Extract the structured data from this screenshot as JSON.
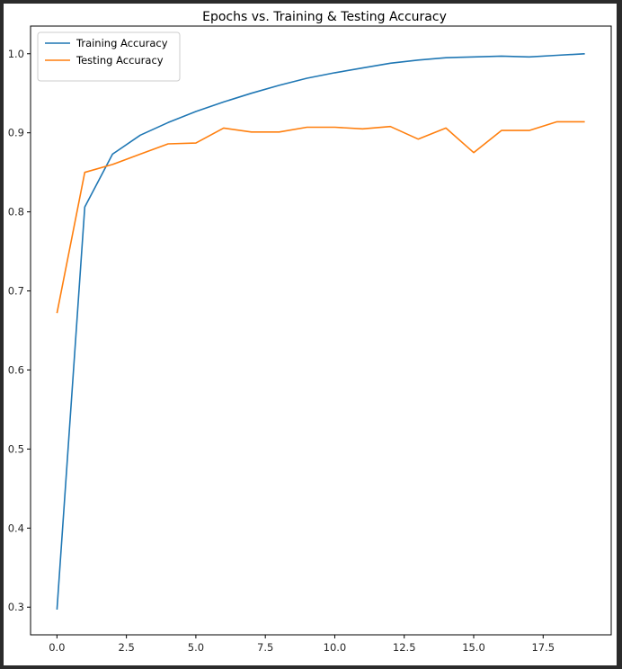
{
  "chart_data": {
    "type": "line",
    "title": "Epochs vs. Training & Testing Accuracy",
    "xlabel": "",
    "ylabel": "",
    "xlim": [
      -0.95,
      19.95
    ],
    "ylim": [
      0.265,
      1.035
    ],
    "x_ticks": [
      0.0,
      2.5,
      5.0,
      7.5,
      10.0,
      12.5,
      15.0,
      17.5
    ],
    "x_tick_labels": [
      "0.0",
      "2.5",
      "5.0",
      "7.5",
      "10.0",
      "12.5",
      "15.0",
      "17.5"
    ],
    "y_ticks": [
      0.3,
      0.4,
      0.5,
      0.6,
      0.7,
      0.8,
      0.9,
      1.0
    ],
    "y_tick_labels": [
      "0.3",
      "0.4",
      "0.5",
      "0.6",
      "0.7",
      "0.8",
      "0.9",
      "1.0"
    ],
    "grid": false,
    "legend_position": "upper left",
    "x": [
      0,
      1,
      2,
      3,
      4,
      5,
      6,
      7,
      8,
      9,
      10,
      11,
      12,
      13,
      14,
      15,
      16,
      17,
      18,
      19
    ],
    "series": [
      {
        "name": "Training Accuracy",
        "color": "#1f77b4",
        "values": [
          0.297,
          0.806,
          0.873,
          0.897,
          0.913,
          0.927,
          0.939,
          0.95,
          0.96,
          0.969,
          0.976,
          0.982,
          0.988,
          0.992,
          0.995,
          0.996,
          0.997,
          0.996,
          0.998,
          1.0
        ]
      },
      {
        "name": "Testing Accuracy",
        "color": "#ff7f0e",
        "values": [
          0.672,
          0.85,
          0.86,
          0.873,
          0.886,
          0.887,
          0.906,
          0.901,
          0.901,
          0.907,
          0.907,
          0.905,
          0.908,
          0.892,
          0.906,
          0.875,
          0.903,
          0.903,
          0.914,
          0.914
        ]
      }
    ]
  }
}
